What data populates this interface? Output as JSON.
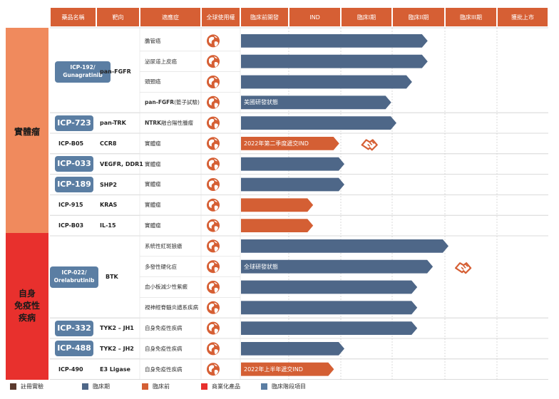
{
  "header": {
    "columns": [
      "藥品名稱",
      "靶向",
      "適應症",
      "全球使用權",
      "臨床前開發",
      "IND",
      "臨床I期",
      "臨床II期",
      "臨床III期",
      "獲批上市"
    ]
  },
  "bands": [
    {
      "label": "實體瘤",
      "color": "#f08a5d"
    },
    {
      "label": "自身\n免疫性\n疾病",
      "color": "#e8302d"
    }
  ],
  "chart_data": {
    "type": "pipeline",
    "stages": [
      "臨床前開發",
      "IND",
      "臨床I期",
      "臨床II期",
      "臨床III期",
      "獲批上市"
    ],
    "rows": [
      {
        "drug": "ICP-192/\nGunagratinib",
        "target": "pan-FGFR",
        "indication": "膽管癌",
        "progress": 3.6,
        "color": "#4e6788",
        "label": ""
      },
      {
        "drug": "",
        "target": "",
        "indication": "泌尿道上皮癌",
        "progress": 3.6,
        "color": "#4e6788",
        "label": ""
      },
      {
        "drug": "",
        "target": "",
        "indication": "頭頸癌",
        "progress": 3.3,
        "color": "#4e6788",
        "label": ""
      },
      {
        "drug": "",
        "target": "",
        "indication_bold": "pan-FGFR",
        "indication": "(籃子試驗)",
        "progress": 2.9,
        "color": "#4e6788",
        "label": "美國研發狀態"
      },
      {
        "drug": "ICP-723",
        "target": "pan-TRK",
        "indication_bold": "NTRK",
        "indication": "融合陽性腫瘤",
        "progress": 3.0,
        "color": "#4e6788",
        "label": ""
      },
      {
        "drug": "ICP-B05",
        "target": "CCR8",
        "indication": "實體瘤",
        "progress": 1.9,
        "color": "#d45f34",
        "label": "2022年第二季度遞交IND",
        "partner": true
      },
      {
        "drug": "ICP-033",
        "target": "VEGFR, DDR1",
        "indication": "實體瘤",
        "progress": 2.0,
        "color": "#4e6788",
        "label": ""
      },
      {
        "drug": "ICP-189",
        "target": "SHP2",
        "indication": "實體瘤",
        "progress": 2.0,
        "color": "#4e6788",
        "label": ""
      },
      {
        "drug": "ICP-915",
        "target": "KRAS",
        "indication": "實體瘤",
        "progress": 1.4,
        "color": "#d45f34",
        "label": ""
      },
      {
        "drug": "ICP-B03",
        "target": "IL-15",
        "indication": "實體瘤",
        "progress": 1.4,
        "color": "#d45f34",
        "label": ""
      },
      {
        "drug": "ICP-022/\nOrelabrutinib",
        "target": "BTK",
        "indication": "系統性紅斑狼瘡",
        "progress": 4.0,
        "color": "#4e6788",
        "label": ""
      },
      {
        "drug": "",
        "target": "",
        "indication": "多發性硬化症",
        "progress": 3.7,
        "color": "#4e6788",
        "label": "全球研發狀態",
        "partner": true
      },
      {
        "drug": "",
        "target": "",
        "indication": "血小板減少性紫癜",
        "progress": 3.4,
        "color": "#4e6788",
        "label": ""
      },
      {
        "drug": "",
        "target": "",
        "indication": "視神經脊髓炎譜系疾病",
        "progress": 3.4,
        "color": "#4e6788",
        "label": ""
      },
      {
        "drug": "ICP-332",
        "target": "TYK2 – JH1",
        "indication": "自身免疫性疾病",
        "progress": 3.4,
        "color": "#4e6788",
        "label": ""
      },
      {
        "drug": "ICP-488",
        "target": "TYK2 – JH2",
        "indication": "自身免疫性疾病",
        "progress": 2.0,
        "color": "#4e6788",
        "label": ""
      },
      {
        "drug": "ICP-490",
        "target": "E3 Ligase",
        "indication": "自身免疫性疾病",
        "progress": 1.8,
        "color": "#d45f34",
        "label": "2022年上半年遞交IND"
      }
    ]
  },
  "legend": [
    {
      "label": "註冊實驗",
      "color": "#5b3a2e",
      "icon": "registration-icon"
    },
    {
      "label": "臨床期",
      "color": "#4e6788"
    },
    {
      "label": "臨床前",
      "color": "#d45f34"
    },
    {
      "label": "商業化產品",
      "color": "#e8302d"
    },
    {
      "label": "臨床階段項目",
      "color": "#5b7ea3"
    }
  ],
  "icons": {
    "globe": "globe-icon",
    "partner": "handshake-icon"
  }
}
